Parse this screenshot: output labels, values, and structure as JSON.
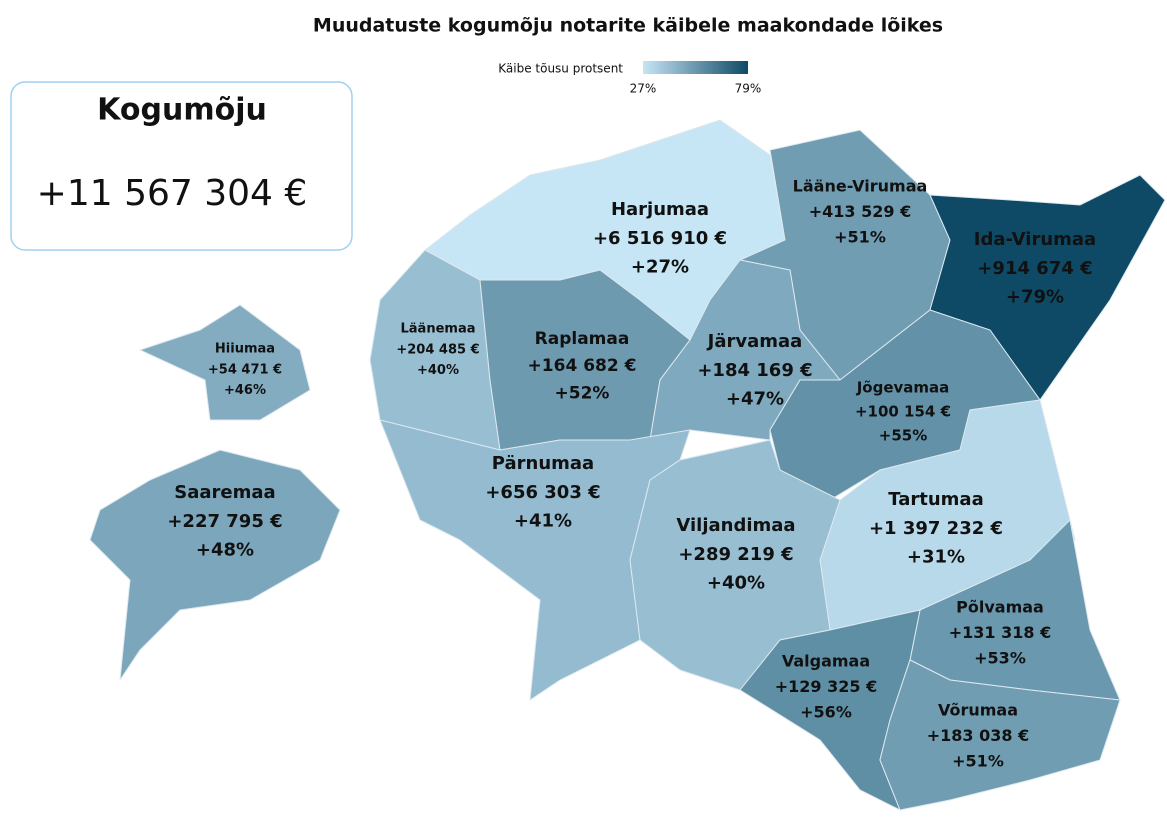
{
  "title": "Muudatuste kogumõju notarite käibele maakondade lõikes",
  "legend": {
    "title": "Käibe tõusu protsent",
    "min": 27,
    "min_label": "27%",
    "max": 79,
    "max_label": "79%",
    "min_color": "#c6e5f5",
    "max_color": "#0e4a66"
  },
  "total": {
    "title": "Kogumõju",
    "value": "+11 567 304 €"
  },
  "regions": [
    {
      "name": "Harjumaa",
      "amount": "+6 516 910 €",
      "value": 27,
      "value_label": "+27%"
    },
    {
      "name": "Lääne-Virumaa",
      "amount": "+413 529 €",
      "value": 51,
      "value_label": "+51%"
    },
    {
      "name": "Ida-Virumaa",
      "amount": "+914 674 €",
      "value": 79,
      "value_label": "+79%"
    },
    {
      "name": "Läänemaa",
      "amount": "+204 485 €",
      "value": 40,
      "value_label": "+40%"
    },
    {
      "name": "Raplamaa",
      "amount": "+164 682 €",
      "value": 52,
      "value_label": "+52%"
    },
    {
      "name": "Järvamaa",
      "amount": "+184 169 €",
      "value": 47,
      "value_label": "+47%"
    },
    {
      "name": "Hiiumaa",
      "amount": "+54 471 €",
      "value": 46,
      "value_label": "+46%"
    },
    {
      "name": "Jõgevamaa",
      "amount": "+100 154 €",
      "value": 55,
      "value_label": "+55%"
    },
    {
      "name": "Pärnumaa",
      "amount": "+656 303 €",
      "value": 41,
      "value_label": "+41%"
    },
    {
      "name": "Saaremaa",
      "amount": "+227 795 €",
      "value": 48,
      "value_label": "+48%"
    },
    {
      "name": "Tartumaa",
      "amount": "+1 397 232 €",
      "value": 31,
      "value_label": "+31%"
    },
    {
      "name": "Viljandimaa",
      "amount": "+289 219 €",
      "value": 40,
      "value_label": "+40%"
    },
    {
      "name": "Põlvamaa",
      "amount": "+131 318 €",
      "value": 53,
      "value_label": "+53%"
    },
    {
      "name": "Valgamaa",
      "amount": "+129 325 €",
      "value": 56,
      "value_label": "+56%"
    },
    {
      "name": "Võrumaa",
      "amount": "+183 038 €",
      "value": 51,
      "value_label": "+51%"
    }
  ]
}
